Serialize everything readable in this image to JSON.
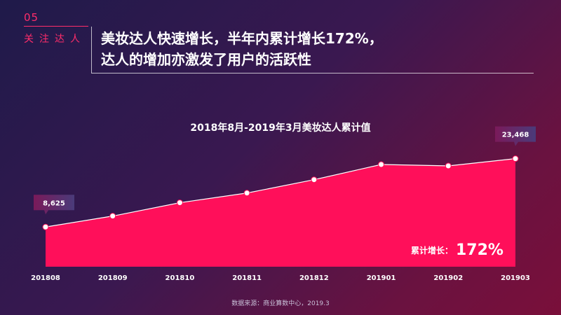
{
  "section": {
    "number": "05",
    "label": "关注达人"
  },
  "title": {
    "line1": "美妆达人快速增长，半年内累计增长172%，",
    "line2": "达人的增加亦激发了用户的活跃性"
  },
  "chart_data": {
    "type": "area",
    "title": "2018年8月-2019年3月美妆达人累计值",
    "categories": [
      "201808",
      "201809",
      "201810",
      "201811",
      "201812",
      "201901",
      "201902",
      "201903"
    ],
    "values": [
      8625,
      11000,
      13900,
      16000,
      18900,
      22200,
      21900,
      23468
    ],
    "callouts": [
      {
        "index": 0,
        "text": "8,625"
      },
      {
        "index": 7,
        "text": "23,468"
      }
    ],
    "growth": {
      "label": "累计增长：",
      "value": "172%"
    },
    "ylim": [
      0,
      26000
    ],
    "grid": false,
    "colors": {
      "fill": "#ff0f5a",
      "line": "#ffffff",
      "callout": "#4a3b7a"
    }
  },
  "source": "数据来源：商业算数中心，2019.3"
}
